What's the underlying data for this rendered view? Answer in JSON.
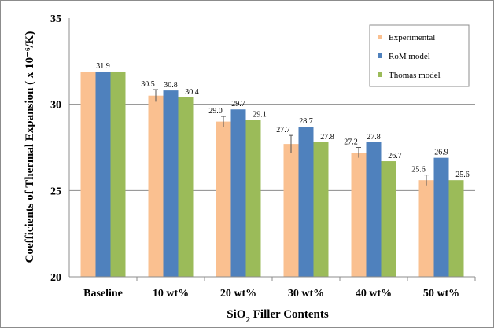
{
  "chart_data": {
    "type": "bar",
    "title": "",
    "ylabel": "Coefficients of Thermal Expansion ( x 10⁻⁶/K)",
    "xlabel_main": "SiO",
    "xlabel_sub": "2",
    "xlabel_rest": " Filler Contents",
    "ylim": [
      20,
      35
    ],
    "yticks": [
      "20",
      "25",
      "30",
      "35"
    ],
    "grid": true,
    "legend_position": "top-right",
    "categories": [
      "Baseline",
      "10 wt%",
      "20 wt%",
      "30 wt%",
      "40 wt%",
      "50 wt%"
    ],
    "series": [
      {
        "name": "Experimental",
        "color": "#fac090",
        "values": [
          31.9,
          30.5,
          29.0,
          27.7,
          27.2,
          25.6
        ],
        "labels": [
          "",
          "30.5",
          "29.0",
          "27.7",
          "27.2",
          "25.6"
        ],
        "error": [
          0,
          0.35,
          0.3,
          0.5,
          0.3,
          0.3
        ]
      },
      {
        "name": "RoM model",
        "color": "#4f81bd",
        "values": [
          31.9,
          30.8,
          29.7,
          28.7,
          27.8,
          26.9
        ],
        "labels": [
          "31.9",
          "30.8",
          "29.7",
          "28.7",
          "27.8",
          "26.9"
        ]
      },
      {
        "name": "Thomas model",
        "color": "#9bbb59",
        "values": [
          31.9,
          30.4,
          29.1,
          27.8,
          26.7,
          25.6
        ],
        "labels": [
          "",
          "30.4",
          "29.1",
          "27.8",
          "26.7",
          "25.6"
        ]
      }
    ]
  }
}
